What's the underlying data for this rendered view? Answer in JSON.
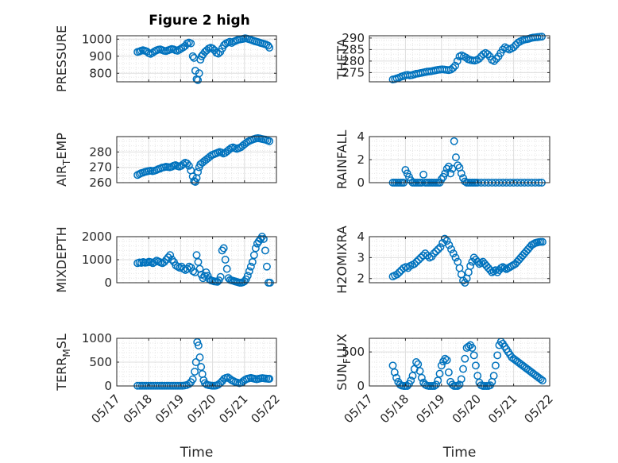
{
  "title": "Figure 2 high",
  "time_ticks": [
    "05/17",
    "05/18",
    "05/19",
    "05/20",
    "05/21",
    "05/22"
  ],
  "time_label": "Time",
  "colors": {
    "marker": "#0072BD",
    "axes": "#262626",
    "grid": "#dfdfdf",
    "background": "#ffffff"
  },
  "chart_data": [
    {
      "type": "scatter",
      "ylabel": "PRESSURE",
      "ylim": [
        750,
        1020
      ],
      "yticks": [
        800,
        900,
        1000
      ],
      "xlim": [
        0,
        5
      ],
      "grid": true,
      "x": [
        0.65,
        0.71,
        0.76,
        0.82,
        0.88,
        0.94,
        1.0,
        1.06,
        1.12,
        1.18,
        1.24,
        1.3,
        1.36,
        1.42,
        1.48,
        1.54,
        1.6,
        1.66,
        1.72,
        1.78,
        1.84,
        1.9,
        1.96,
        2.02,
        2.08,
        2.14,
        2.2,
        2.26,
        2.32,
        2.38,
        2.42,
        2.46,
        2.5,
        2.54,
        2.58,
        2.62,
        2.66,
        2.7,
        2.76,
        2.82,
        2.88,
        2.94,
        3.0,
        3.06,
        3.12,
        3.18,
        3.24,
        3.3,
        3.36,
        3.42,
        3.48,
        3.54,
        3.6,
        3.66,
        3.72,
        3.78,
        3.84,
        3.9,
        3.96,
        4.02,
        4.08,
        4.14,
        4.2,
        4.26,
        4.32,
        4.38,
        4.44,
        4.5,
        4.56,
        4.62,
        4.68,
        4.74,
        4.78
      ],
      "y": [
        925,
        928,
        932,
        935,
        932,
        928,
        918,
        914,
        920,
        928,
        934,
        938,
        940,
        936,
        932,
        930,
        934,
        938,
        942,
        940,
        935,
        932,
        938,
        945,
        952,
        960,
        975,
        980,
        975,
        900,
        890,
        815,
        765,
        760,
        800,
        880,
        900,
        910,
        925,
        935,
        945,
        950,
        945,
        935,
        920,
        915,
        925,
        945,
        965,
        975,
        980,
        985,
        978,
        985,
        990,
        995,
        998,
        1000,
        1002,
        1005,
        1003,
        1000,
        996,
        992,
        988,
        985,
        982,
        978,
        975,
        972,
        968,
        962,
        950
      ]
    },
    {
      "type": "scatter",
      "ylabel": "THETA",
      "ylim": [
        271,
        291
      ],
      "yticks": [
        275,
        280,
        285,
        290
      ],
      "xlim": [
        0,
        5
      ],
      "grid": true,
      "x": [
        0.65,
        0.71,
        0.76,
        0.82,
        0.88,
        0.94,
        1.0,
        1.06,
        1.12,
        1.18,
        1.24,
        1.3,
        1.36,
        1.42,
        1.48,
        1.54,
        1.6,
        1.66,
        1.72,
        1.78,
        1.84,
        1.9,
        1.96,
        2.02,
        2.08,
        2.14,
        2.2,
        2.26,
        2.32,
        2.38,
        2.44,
        2.5,
        2.56,
        2.62,
        2.68,
        2.74,
        2.8,
        2.86,
        2.92,
        2.98,
        3.04,
        3.1,
        3.16,
        3.22,
        3.28,
        3.34,
        3.4,
        3.46,
        3.52,
        3.58,
        3.64,
        3.7,
        3.76,
        3.82,
        3.88,
        3.94,
        4.0,
        4.06,
        4.12,
        4.18,
        4.24,
        4.3,
        4.36,
        4.42,
        4.48,
        4.54,
        4.6,
        4.66,
        4.72,
        4.78
      ],
      "y": [
        272,
        272.2,
        272.5,
        272.8,
        273.2,
        273.5,
        273.8,
        274,
        273.8,
        273.9,
        274.2,
        274.5,
        274.6,
        274.8,
        275,
        275.2,
        275.4,
        275.5,
        275.6,
        275.8,
        276,
        276.2,
        276.3,
        276.4,
        276.3,
        276.2,
        276.1,
        276.3,
        277,
        278,
        280,
        282,
        282.5,
        282,
        281.5,
        280.8,
        280.5,
        280.3,
        280.2,
        280.5,
        281,
        282,
        283,
        283.5,
        283,
        282,
        280.5,
        280,
        281,
        282,
        283.5,
        285,
        286,
        285.5,
        285,
        285.5,
        286,
        287,
        288,
        288.5,
        289,
        289.3,
        289.5,
        289.7,
        290,
        290.2,
        290.3,
        290.4,
        290.5,
        290.6
      ]
    },
    {
      "type": "scatter",
      "ylabel": "AIR_TEMP",
      "ylim": [
        260,
        290
      ],
      "yticks": [
        260,
        270,
        280
      ],
      "xlim": [
        0,
        5
      ],
      "grid": true,
      "x": [
        0.65,
        0.71,
        0.76,
        0.82,
        0.88,
        0.94,
        1.0,
        1.06,
        1.12,
        1.18,
        1.24,
        1.3,
        1.36,
        1.42,
        1.48,
        1.54,
        1.6,
        1.66,
        1.72,
        1.78,
        1.84,
        1.9,
        1.96,
        2.02,
        2.08,
        2.14,
        2.2,
        2.26,
        2.32,
        2.38,
        2.42,
        2.46,
        2.5,
        2.54,
        2.58,
        2.62,
        2.68,
        2.74,
        2.8,
        2.86,
        2.92,
        2.98,
        3.04,
        3.1,
        3.16,
        3.22,
        3.28,
        3.34,
        3.4,
        3.46,
        3.52,
        3.58,
        3.64,
        3.7,
        3.76,
        3.82,
        3.88,
        3.94,
        4.0,
        4.06,
        4.12,
        4.18,
        4.24,
        4.3,
        4.36,
        4.42,
        4.48,
        4.54,
        4.6,
        4.66,
        4.72,
        4.78
      ],
      "y": [
        265,
        265.6,
        266.2,
        266.5,
        267,
        267.3,
        267.6,
        267.8,
        267.5,
        267.8,
        268.2,
        268.8,
        269.2,
        269.8,
        270,
        270.4,
        270.2,
        270,
        270.4,
        271,
        271.4,
        270.8,
        270.5,
        271,
        272,
        273,
        272.5,
        271,
        268,
        264,
        261,
        260.5,
        263,
        267,
        270,
        272,
        273,
        274,
        275,
        276,
        277,
        278,
        278.5,
        279,
        279.5,
        280,
        279.6,
        279,
        279.5,
        280.5,
        281.5,
        282.5,
        283,
        282.5,
        282,
        282.5,
        283,
        284,
        285,
        286,
        286.8,
        287.5,
        288,
        288.4,
        288.8,
        289,
        288.8,
        288.5,
        288.2,
        288,
        287.5,
        287
      ]
    },
    {
      "type": "scatter",
      "ylabel": "RAINFALL",
      "ylim": [
        0,
        4
      ],
      "yticks": [
        0,
        2,
        4
      ],
      "xlim": [
        0,
        5
      ],
      "grid": true,
      "x": [
        0.65,
        0.7,
        0.75,
        0.8,
        0.85,
        0.9,
        0.95,
        1.0,
        1.05,
        1.1,
        1.15,
        1.2,
        1.25,
        1.3,
        1.35,
        1.4,
        1.45,
        1.5,
        1.55,
        1.6,
        1.65,
        1.7,
        1.75,
        1.8,
        1.85,
        1.9,
        1.95,
        2.0,
        2.05,
        2.1,
        2.15,
        2.2,
        2.25,
        2.3,
        2.35,
        2.4,
        2.45,
        2.5,
        2.55,
        2.6,
        2.65,
        2.7,
        2.75,
        2.8,
        2.85,
        2.9,
        2.95,
        3.0,
        3.1,
        3.2,
        3.3,
        3.4,
        3.5,
        3.6,
        3.7,
        3.8,
        3.9,
        4.0,
        4.1,
        4.2,
        4.3,
        4.4,
        4.5,
        4.6,
        4.7,
        4.78
      ],
      "y": [
        0,
        0,
        0,
        0,
        0,
        0,
        0,
        1.1,
        0.8,
        0.5,
        0.2,
        0,
        0,
        0,
        0,
        0,
        0,
        0.7,
        0,
        0,
        0,
        0,
        0,
        0,
        0,
        0,
        0,
        0.3,
        0.5,
        0.8,
        1.2,
        1.4,
        0.8,
        1.2,
        3.6,
        2.2,
        1.5,
        1.3,
        0.8,
        0.4,
        0.1,
        0,
        0,
        0,
        0,
        0,
        0,
        0,
        0,
        0,
        0,
        0,
        0,
        0,
        0,
        0,
        0,
        0,
        0,
        0,
        0,
        0,
        0,
        0,
        0,
        0
      ]
    },
    {
      "type": "scatter",
      "ylabel": "MIXDEPTH",
      "ylim": [
        0,
        2000
      ],
      "yticks": [
        0,
        1000,
        2000
      ],
      "xlim": [
        0,
        5
      ],
      "grid": true,
      "x": [
        0.65,
        0.71,
        0.77,
        0.83,
        0.89,
        0.95,
        1.01,
        1.07,
        1.13,
        1.19,
        1.25,
        1.31,
        1.37,
        1.43,
        1.49,
        1.55,
        1.61,
        1.67,
        1.73,
        1.79,
        1.85,
        1.91,
        1.97,
        2.03,
        2.09,
        2.15,
        2.21,
        2.27,
        2.33,
        2.39,
        2.45,
        2.5,
        2.55,
        2.6,
        2.65,
        2.7,
        2.75,
        2.8,
        2.85,
        2.9,
        2.95,
        3.0,
        3.05,
        3.1,
        3.15,
        3.2,
        3.25,
        3.3,
        3.35,
        3.4,
        3.45,
        3.5,
        3.55,
        3.6,
        3.65,
        3.7,
        3.75,
        3.8,
        3.85,
        3.9,
        3.95,
        4.0,
        4.05,
        4.1,
        4.15,
        4.2,
        4.25,
        4.3,
        4.35,
        4.4,
        4.45,
        4.5,
        4.55,
        4.6,
        4.65,
        4.7,
        4.75,
        4.8
      ],
      "y": [
        850,
        880,
        860,
        900,
        870,
        880,
        910,
        890,
        850,
        900,
        960,
        920,
        880,
        850,
        900,
        1000,
        1100,
        1200,
        1000,
        900,
        750,
        700,
        650,
        700,
        600,
        550,
        600,
        700,
        650,
        500,
        450,
        1200,
        900,
        600,
        350,
        200,
        300,
        450,
        300,
        150,
        100,
        80,
        60,
        50,
        40,
        100,
        250,
        1400,
        1500,
        1000,
        600,
        200,
        120,
        100,
        80,
        60,
        40,
        20,
        0,
        0,
        20,
        60,
        150,
        300,
        500,
        700,
        900,
        1200,
        1500,
        1700,
        1800,
        1900,
        2000,
        1900,
        1400,
        700,
        0,
        0
      ]
    },
    {
      "type": "scatter",
      "ylabel": "H2OMIXRA",
      "ylim": [
        1.8,
        4
      ],
      "yticks": [
        2,
        3,
        4
      ],
      "xlim": [
        0,
        5
      ],
      "grid": true,
      "x": [
        0.65,
        0.71,
        0.77,
        0.83,
        0.89,
        0.95,
        1.01,
        1.07,
        1.13,
        1.19,
        1.25,
        1.31,
        1.37,
        1.43,
        1.49,
        1.55,
        1.61,
        1.67,
        1.73,
        1.79,
        1.85,
        1.91,
        1.97,
        2.03,
        2.09,
        2.15,
        2.21,
        2.27,
        2.33,
        2.39,
        2.45,
        2.5,
        2.55,
        2.6,
        2.65,
        2.7,
        2.75,
        2.8,
        2.85,
        2.9,
        2.95,
        3.0,
        3.05,
        3.1,
        3.15,
        3.2,
        3.25,
        3.3,
        3.35,
        3.4,
        3.45,
        3.5,
        3.55,
        3.6,
        3.65,
        3.7,
        3.75,
        3.8,
        3.85,
        3.9,
        3.95,
        4.0,
        4.05,
        4.1,
        4.15,
        4.2,
        4.25,
        4.3,
        4.35,
        4.4,
        4.45,
        4.5,
        4.55,
        4.6,
        4.65,
        4.7,
        4.75,
        4.8
      ],
      "y": [
        2.1,
        2.15,
        2.2,
        2.3,
        2.4,
        2.5,
        2.55,
        2.5,
        2.6,
        2.65,
        2.7,
        2.8,
        2.9,
        3.0,
        3.1,
        3.2,
        3.1,
        3.0,
        3.05,
        3.2,
        3.3,
        3.4,
        3.5,
        3.7,
        3.9,
        3.8,
        3.6,
        3.4,
        3.2,
        3.0,
        2.8,
        2.5,
        2.2,
        1.9,
        1.8,
        2.0,
        2.3,
        2.6,
        2.8,
        3.0,
        2.9,
        2.8,
        2.7,
        2.75,
        2.8,
        2.7,
        2.6,
        2.5,
        2.4,
        2.3,
        2.35,
        2.4,
        2.3,
        2.4,
        2.5,
        2.55,
        2.5,
        2.45,
        2.5,
        2.55,
        2.6,
        2.65,
        2.7,
        2.8,
        2.9,
        3.0,
        3.1,
        3.2,
        3.3,
        3.4,
        3.5,
        3.6,
        3.65,
        3.7,
        3.72,
        3.74,
        3.75,
        3.75
      ]
    },
    {
      "type": "scatter",
      "ylabel": "TERR_MSL",
      "ylim": [
        0,
        1000
      ],
      "yticks": [
        0,
        500,
        1000
      ],
      "xlim": [
        0,
        5
      ],
      "grid": true,
      "x": [
        0.65,
        0.72,
        0.79,
        0.86,
        0.93,
        1.0,
        1.07,
        1.14,
        1.21,
        1.28,
        1.35,
        1.42,
        1.49,
        1.56,
        1.63,
        1.7,
        1.77,
        1.84,
        1.91,
        1.98,
        2.05,
        2.12,
        2.19,
        2.26,
        2.32,
        2.38,
        2.44,
        2.48,
        2.52,
        2.56,
        2.6,
        2.64,
        2.68,
        2.72,
        2.76,
        2.82,
        2.88,
        2.94,
        3.0,
        3.06,
        3.12,
        3.18,
        3.24,
        3.3,
        3.36,
        3.42,
        3.48,
        3.54,
        3.6,
        3.66,
        3.72,
        3.78,
        3.84,
        3.9,
        3.96,
        4.02,
        4.08,
        4.14,
        4.2,
        4.26,
        4.32,
        4.38,
        4.44,
        4.5,
        4.56,
        4.62,
        4.68,
        4.74,
        4.78
      ],
      "y": [
        5,
        5,
        5,
        5,
        5,
        5,
        5,
        5,
        5,
        5,
        5,
        5,
        5,
        5,
        5,
        5,
        5,
        5,
        5,
        5,
        5,
        10,
        20,
        40,
        80,
        140,
        300,
        500,
        920,
        850,
        600,
        400,
        250,
        120,
        60,
        30,
        15,
        10,
        5,
        5,
        10,
        30,
        60,
        100,
        150,
        170,
        180,
        150,
        120,
        100,
        80,
        70,
        60,
        70,
        100,
        130,
        150,
        160,
        170,
        160,
        150,
        140,
        150,
        160,
        165,
        160,
        155,
        150,
        150
      ]
    },
    {
      "type": "scatter",
      "ylabel": "SUN_FLUX",
      "ylim": [
        0,
        700
      ],
      "yticks": [
        0,
        500
      ],
      "xlim": [
        0,
        5
      ],
      "grid": true,
      "x": [
        0.65,
        0.7,
        0.75,
        0.8,
        0.85,
        0.9,
        0.95,
        1.0,
        1.05,
        1.1,
        1.15,
        1.2,
        1.25,
        1.3,
        1.35,
        1.4,
        1.45,
        1.5,
        1.55,
        1.6,
        1.65,
        1.7,
        1.75,
        1.8,
        1.85,
        1.9,
        1.95,
        2.0,
        2.05,
        2.1,
        2.15,
        2.2,
        2.25,
        2.3,
        2.35,
        2.4,
        2.45,
        2.5,
        2.55,
        2.6,
        2.65,
        2.7,
        2.75,
        2.8,
        2.85,
        2.9,
        2.95,
        3.0,
        3.05,
        3.1,
        3.15,
        3.2,
        3.25,
        3.3,
        3.35,
        3.4,
        3.45,
        3.5,
        3.55,
        3.6,
        3.65,
        3.7,
        3.75,
        3.8,
        3.85,
        3.9,
        3.95,
        4.0,
        4.05,
        4.1,
        4.15,
        4.2,
        4.25,
        4.3,
        4.35,
        4.4,
        4.45,
        4.5,
        4.55,
        4.6,
        4.65,
        4.7,
        4.75,
        4.8
      ],
      "y": [
        300,
        200,
        120,
        60,
        20,
        5,
        0,
        0,
        0,
        30,
        80,
        150,
        250,
        350,
        320,
        220,
        120,
        50,
        20,
        5,
        0,
        0,
        0,
        0,
        20,
        80,
        180,
        300,
        360,
        400,
        380,
        200,
        60,
        20,
        0,
        0,
        0,
        20,
        100,
        250,
        400,
        560,
        580,
        600,
        560,
        450,
        300,
        150,
        50,
        10,
        0,
        0,
        0,
        0,
        10,
        60,
        150,
        300,
        450,
        600,
        650,
        620,
        580,
        540,
        500,
        460,
        420,
        400,
        380,
        360,
        340,
        320,
        300,
        280,
        260,
        240,
        220,
        200,
        180,
        160,
        140,
        120,
        100,
        80
      ]
    }
  ]
}
